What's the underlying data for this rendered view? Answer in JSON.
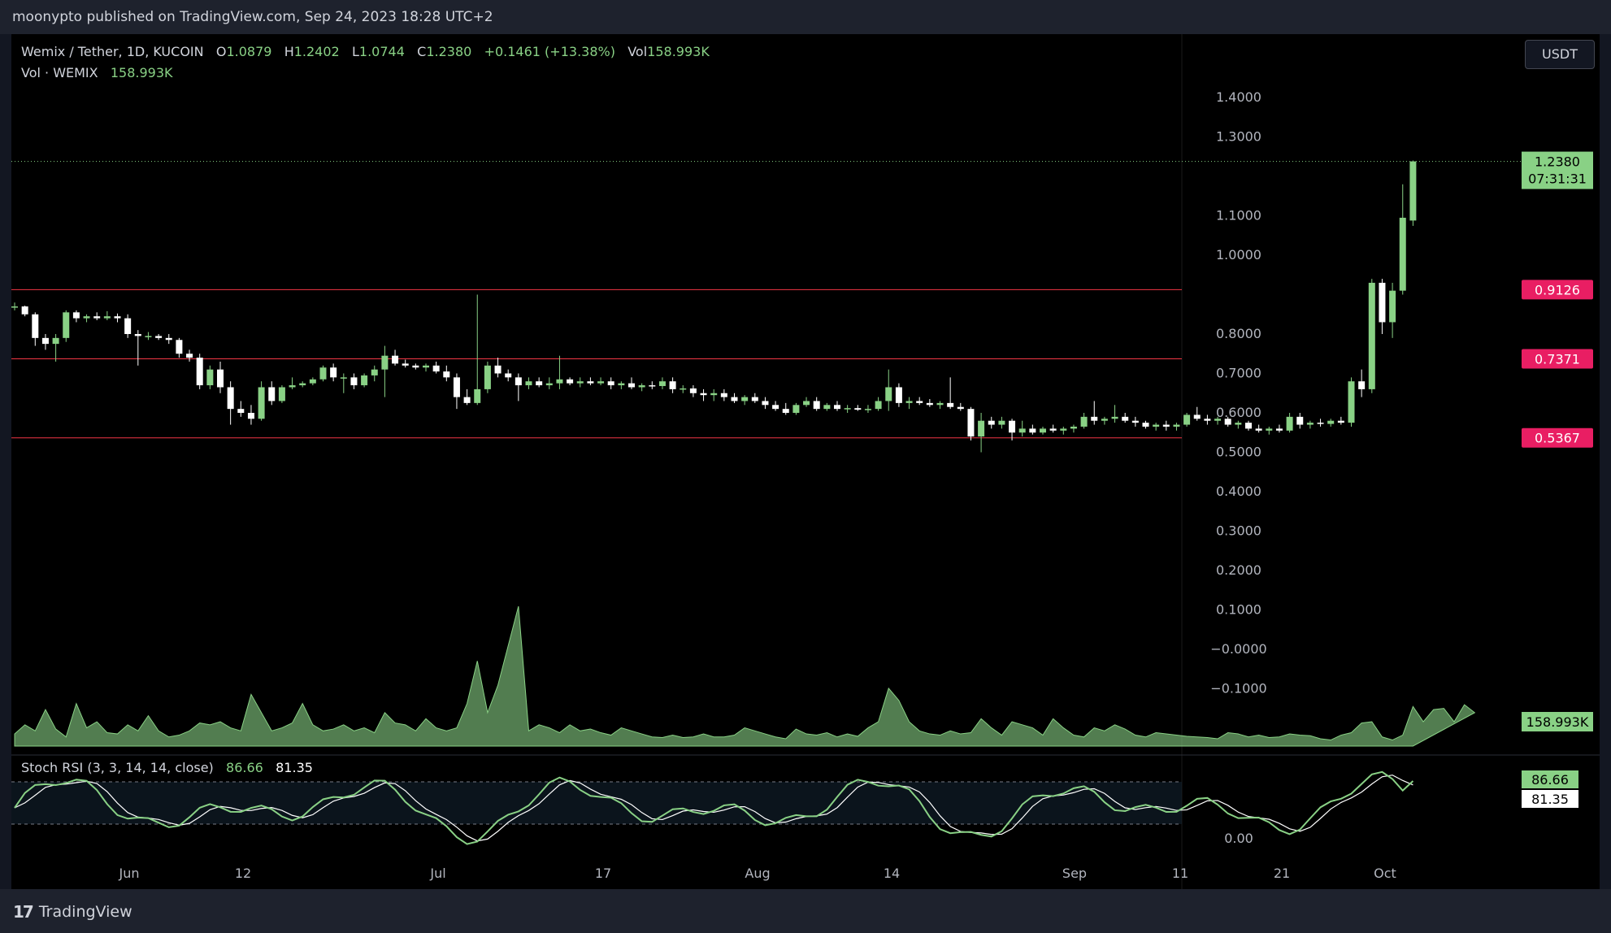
{
  "header": {
    "publish_text": "moonypto published on TradingView.com, Sep 24, 2023 18:28 UTC+2"
  },
  "legend": {
    "symbol": "Wemix / Tether, 1D, KUCOIN",
    "open_label": "O",
    "open": "1.0879",
    "high_label": "H",
    "high": "1.2402",
    "low_label": "L",
    "low": "1.0744",
    "close_label": "C",
    "close": "1.2380",
    "change": "+0.1461 (+13.38%)",
    "vol_label": "Vol",
    "vol": "158.993K",
    "vol_series_label": "Vol · WEMIX",
    "vol_series_value": "158.993K",
    "rsi_label": "Stoch RSI (3, 3, 14, 14, close)",
    "rsi_k": "86.66",
    "rsi_d": "81.35"
  },
  "currency_button": "USDT",
  "footer": {
    "brand": "TradingView",
    "brand_mark": "17"
  },
  "colors": {
    "up": "#89d185",
    "down": "#ffffff",
    "support": "#f23645",
    "support_label": "#e91e63",
    "volume": "#89d185",
    "rsi_k": "#89d185",
    "rsi_d": "#ffffff"
  },
  "chart_data": {
    "type": "candlestick",
    "price_axis": {
      "ticks": [
        "1.4000",
        "1.3000",
        "1.1000",
        "1.0000",
        "0.8000",
        "0.7000",
        "0.6000",
        "0.5000",
        "0.4000",
        "0.3000",
        "0.2000",
        "0.1000",
        "−0.0000",
        "−0.1000"
      ]
    },
    "time_axis": {
      "ticks": [
        "Jun",
        "12",
        "Jul",
        "17",
        "Aug",
        "14",
        "Sep",
        "11",
        "21",
        "Oct"
      ]
    },
    "last_price": {
      "value": "1.2380",
      "countdown": "07:31:31"
    },
    "volume_label": "158.993K",
    "support_levels": [
      {
        "value": 0.9126,
        "label": "0.9126"
      },
      {
        "value": 0.7371,
        "label": "0.7371"
      },
      {
        "value": 0.5367,
        "label": "0.5367"
      }
    ],
    "candles": [
      [
        0.868,
        0.88,
        0.86,
        0.87
      ],
      [
        0.87,
        0.872,
        0.845,
        0.85
      ],
      [
        0.85,
        0.855,
        0.77,
        0.79
      ],
      [
        0.79,
        0.8,
        0.76,
        0.775
      ],
      [
        0.775,
        0.8,
        0.73,
        0.79
      ],
      [
        0.79,
        0.86,
        0.78,
        0.855
      ],
      [
        0.855,
        0.86,
        0.83,
        0.84
      ],
      [
        0.84,
        0.85,
        0.83,
        0.845
      ],
      [
        0.845,
        0.855,
        0.835,
        0.84
      ],
      [
        0.84,
        0.858,
        0.835,
        0.845
      ],
      [
        0.845,
        0.852,
        0.83,
        0.84
      ],
      [
        0.84,
        0.85,
        0.79,
        0.8
      ],
      [
        0.8,
        0.81,
        0.72,
        0.795
      ],
      [
        0.795,
        0.805,
        0.785,
        0.795
      ],
      [
        0.795,
        0.8,
        0.785,
        0.79
      ],
      [
        0.79,
        0.8,
        0.775,
        0.785
      ],
      [
        0.785,
        0.79,
        0.74,
        0.75
      ],
      [
        0.75,
        0.76,
        0.73,
        0.74
      ],
      [
        0.74,
        0.75,
        0.66,
        0.67
      ],
      [
        0.67,
        0.72,
        0.66,
        0.71
      ],
      [
        0.71,
        0.73,
        0.65,
        0.665
      ],
      [
        0.665,
        0.68,
        0.57,
        0.61
      ],
      [
        0.61,
        0.63,
        0.59,
        0.6
      ],
      [
        0.6,
        0.62,
        0.57,
        0.585
      ],
      [
        0.585,
        0.68,
        0.58,
        0.665
      ],
      [
        0.665,
        0.68,
        0.62,
        0.63
      ],
      [
        0.63,
        0.67,
        0.625,
        0.665
      ],
      [
        0.665,
        0.69,
        0.66,
        0.67
      ],
      [
        0.67,
        0.68,
        0.665,
        0.675
      ],
      [
        0.675,
        0.69,
        0.67,
        0.685
      ],
      [
        0.685,
        0.72,
        0.68,
        0.715
      ],
      [
        0.715,
        0.725,
        0.68,
        0.69
      ],
      [
        0.69,
        0.7,
        0.65,
        0.69
      ],
      [
        0.69,
        0.7,
        0.66,
        0.67
      ],
      [
        0.67,
        0.7,
        0.665,
        0.695
      ],
      [
        0.695,
        0.72,
        0.68,
        0.71
      ],
      [
        0.71,
        0.77,
        0.64,
        0.745
      ],
      [
        0.745,
        0.76,
        0.72,
        0.725
      ],
      [
        0.725,
        0.735,
        0.715,
        0.72
      ],
      [
        0.72,
        0.725,
        0.71,
        0.715
      ],
      [
        0.715,
        0.725,
        0.705,
        0.72
      ],
      [
        0.72,
        0.73,
        0.7,
        0.705
      ],
      [
        0.705,
        0.72,
        0.68,
        0.69
      ],
      [
        0.69,
        0.7,
        0.61,
        0.64
      ],
      [
        0.64,
        0.66,
        0.62,
        0.625
      ],
      [
        0.625,
        0.9,
        0.62,
        0.66
      ],
      [
        0.66,
        0.73,
        0.65,
        0.72
      ],
      [
        0.72,
        0.74,
        0.69,
        0.7
      ],
      [
        0.7,
        0.71,
        0.68,
        0.69
      ],
      [
        0.69,
        0.7,
        0.63,
        0.67
      ],
      [
        0.67,
        0.69,
        0.66,
        0.68
      ],
      [
        0.68,
        0.69,
        0.665,
        0.67
      ],
      [
        0.67,
        0.69,
        0.66,
        0.675
      ],
      [
        0.675,
        0.745,
        0.66,
        0.685
      ],
      [
        0.685,
        0.69,
        0.67,
        0.675
      ],
      [
        0.675,
        0.69,
        0.665,
        0.68
      ],
      [
        0.68,
        0.69,
        0.67,
        0.675
      ],
      [
        0.675,
        0.69,
        0.67,
        0.68
      ],
      [
        0.68,
        0.69,
        0.66,
        0.67
      ],
      [
        0.67,
        0.68,
        0.66,
        0.675
      ],
      [
        0.675,
        0.69,
        0.66,
        0.665
      ],
      [
        0.665,
        0.675,
        0.655,
        0.67
      ],
      [
        0.67,
        0.68,
        0.66,
        0.668
      ],
      [
        0.668,
        0.69,
        0.66,
        0.68
      ],
      [
        0.68,
        0.69,
        0.65,
        0.66
      ],
      [
        0.66,
        0.67,
        0.65,
        0.662
      ],
      [
        0.662,
        0.67,
        0.64,
        0.65
      ],
      [
        0.65,
        0.66,
        0.63,
        0.645
      ],
      [
        0.645,
        0.66,
        0.63,
        0.65
      ],
      [
        0.65,
        0.66,
        0.63,
        0.64
      ],
      [
        0.64,
        0.65,
        0.625,
        0.63
      ],
      [
        0.63,
        0.645,
        0.62,
        0.64
      ],
      [
        0.64,
        0.65,
        0.625,
        0.63
      ],
      [
        0.63,
        0.64,
        0.61,
        0.62
      ],
      [
        0.62,
        0.63,
        0.605,
        0.61
      ],
      [
        0.61,
        0.625,
        0.595,
        0.6
      ],
      [
        0.6,
        0.625,
        0.595,
        0.62
      ],
      [
        0.62,
        0.64,
        0.615,
        0.63
      ],
      [
        0.63,
        0.64,
        0.605,
        0.61
      ],
      [
        0.61,
        0.625,
        0.605,
        0.62
      ],
      [
        0.62,
        0.63,
        0.605,
        0.61
      ],
      [
        0.61,
        0.62,
        0.6,
        0.612
      ],
      [
        0.612,
        0.62,
        0.605,
        0.608
      ],
      [
        0.608,
        0.62,
        0.6,
        0.61
      ],
      [
        0.61,
        0.64,
        0.605,
        0.63
      ],
      [
        0.63,
        0.71,
        0.605,
        0.665
      ],
      [
        0.665,
        0.675,
        0.615,
        0.625
      ],
      [
        0.625,
        0.64,
        0.61,
        0.63
      ],
      [
        0.63,
        0.64,
        0.62,
        0.625
      ],
      [
        0.625,
        0.635,
        0.615,
        0.62
      ],
      [
        0.62,
        0.63,
        0.61,
        0.625
      ],
      [
        0.625,
        0.69,
        0.61,
        0.615
      ],
      [
        0.615,
        0.625,
        0.605,
        0.61
      ],
      [
        0.61,
        0.615,
        0.53,
        0.54
      ],
      [
        0.54,
        0.6,
        0.5,
        0.58
      ],
      [
        0.58,
        0.59,
        0.56,
        0.57
      ],
      [
        0.57,
        0.59,
        0.56,
        0.58
      ],
      [
        0.58,
        0.585,
        0.53,
        0.55
      ],
      [
        0.55,
        0.58,
        0.54,
        0.56
      ],
      [
        0.56,
        0.57,
        0.545,
        0.55
      ],
      [
        0.55,
        0.565,
        0.545,
        0.56
      ],
      [
        0.56,
        0.57,
        0.55,
        0.555
      ],
      [
        0.555,
        0.565,
        0.545,
        0.56
      ],
      [
        0.56,
        0.57,
        0.55,
        0.565
      ],
      [
        0.565,
        0.6,
        0.56,
        0.59
      ],
      [
        0.59,
        0.63,
        0.57,
        0.58
      ],
      [
        0.58,
        0.59,
        0.57,
        0.585
      ],
      [
        0.585,
        0.62,
        0.575,
        0.59
      ],
      [
        0.59,
        0.6,
        0.575,
        0.58
      ],
      [
        0.58,
        0.59,
        0.565,
        0.575
      ],
      [
        0.575,
        0.58,
        0.56,
        0.565
      ],
      [
        0.565,
        0.575,
        0.555,
        0.57
      ],
      [
        0.57,
        0.58,
        0.555,
        0.565
      ],
      [
        0.565,
        0.575,
        0.555,
        0.57
      ],
      [
        0.57,
        0.6,
        0.565,
        0.595
      ],
      [
        0.595,
        0.615,
        0.58,
        0.585
      ],
      [
        0.585,
        0.595,
        0.57,
        0.58
      ],
      [
        0.58,
        0.59,
        0.57,
        0.585
      ],
      [
        0.585,
        0.59,
        0.565,
        0.57
      ],
      [
        0.57,
        0.58,
        0.56,
        0.575
      ],
      [
        0.575,
        0.58,
        0.555,
        0.56
      ],
      [
        0.56,
        0.57,
        0.55,
        0.555
      ],
      [
        0.555,
        0.565,
        0.545,
        0.56
      ],
      [
        0.56,
        0.57,
        0.55,
        0.555
      ],
      [
        0.555,
        0.6,
        0.55,
        0.59
      ],
      [
        0.59,
        0.6,
        0.56,
        0.57
      ],
      [
        0.57,
        0.58,
        0.56,
        0.575
      ],
      [
        0.575,
        0.585,
        0.565,
        0.572
      ],
      [
        0.572,
        0.585,
        0.565,
        0.58
      ],
      [
        0.58,
        0.59,
        0.57,
        0.575
      ],
      [
        0.575,
        0.69,
        0.565,
        0.68
      ],
      [
        0.68,
        0.71,
        0.64,
        0.66
      ],
      [
        0.66,
        0.94,
        0.65,
        0.93
      ],
      [
        0.93,
        0.94,
        0.8,
        0.83
      ],
      [
        0.83,
        0.93,
        0.79,
        0.91
      ],
      [
        0.91,
        1.18,
        0.9,
        1.095
      ],
      [
        1.0879,
        1.2402,
        1.0744,
        1.238
      ]
    ],
    "volume": [
      20,
      35,
      25,
      60,
      28,
      15,
      70,
      30,
      40,
      22,
      20,
      35,
      25,
      50,
      25,
      15,
      18,
      25,
      38,
      35,
      40,
      30,
      25,
      85,
      55,
      25,
      30,
      38,
      70,
      35,
      25,
      28,
      35,
      25,
      30,
      22,
      55,
      38,
      35,
      25,
      45,
      30,
      25,
      30,
      70,
      140,
      55,
      100,
      165,
      230,
      25,
      35,
      30,
      22,
      35,
      25,
      28,
      22,
      18,
      30,
      25,
      20,
      15,
      14,
      18,
      14,
      15,
      20,
      15,
      15,
      18,
      30,
      25,
      20,
      15,
      12,
      28,
      20,
      18,
      22,
      15,
      20,
      16,
      30,
      40,
      95,
      75,
      40,
      25,
      20,
      18,
      25,
      20,
      22,
      45,
      30,
      18,
      40,
      35,
      30,
      18,
      45,
      30,
      18,
      15,
      30,
      25,
      35,
      28,
      18,
      15,
      22,
      20,
      18,
      16,
      15,
      14,
      12,
      22,
      20,
      15,
      18,
      14,
      15,
      20,
      18,
      17,
      12,
      10,
      18,
      22,
      38,
      40,
      15,
      10,
      18,
      65,
      40,
      60,
      62,
      40,
      68,
      55
    ]
  }
}
